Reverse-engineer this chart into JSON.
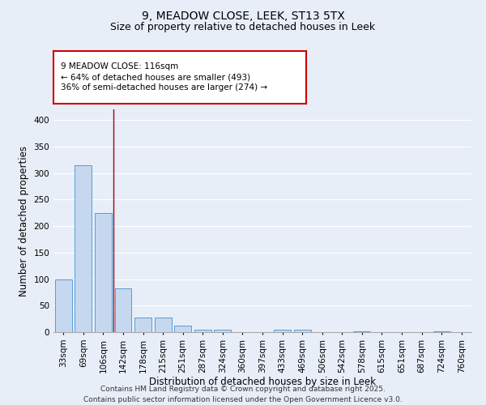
{
  "title_line1": "9, MEADOW CLOSE, LEEK, ST13 5TX",
  "title_line2": "Size of property relative to detached houses in Leek",
  "xlabel": "Distribution of detached houses by size in Leek",
  "ylabel": "Number of detached properties",
  "categories": [
    "33sqm",
    "69sqm",
    "106sqm",
    "142sqm",
    "178sqm",
    "215sqm",
    "251sqm",
    "287sqm",
    "324sqm",
    "360sqm",
    "397sqm",
    "433sqm",
    "469sqm",
    "506sqm",
    "542sqm",
    "578sqm",
    "615sqm",
    "651sqm",
    "687sqm",
    "724sqm",
    "760sqm"
  ],
  "values": [
    100,
    315,
    225,
    82,
    27,
    27,
    12,
    4,
    4,
    0,
    0,
    5,
    5,
    0,
    0,
    2,
    0,
    0,
    0,
    2,
    0
  ],
  "bar_color": "#c5d8f0",
  "bar_edge_color": "#5b9bd5",
  "background_color": "#e8eef8",
  "grid_color": "#ffffff",
  "red_line_x": 2.5,
  "annotation_text": "9 MEADOW CLOSE: 116sqm\n← 64% of detached houses are smaller (493)\n36% of semi-detached houses are larger (274) →",
  "annotation_box_color": "#ffffff",
  "annotation_box_edge": "#cc0000",
  "ylim": [
    0,
    420
  ],
  "yticks": [
    0,
    50,
    100,
    150,
    200,
    250,
    300,
    350,
    400
  ],
  "footer_line1": "Contains HM Land Registry data © Crown copyright and database right 2025.",
  "footer_line2": "Contains public sector information licensed under the Open Government Licence v3.0.",
  "title_fontsize": 10,
  "subtitle_fontsize": 9,
  "axis_label_fontsize": 8.5,
  "tick_fontsize": 7.5,
  "annotation_fontsize": 7.5,
  "footer_fontsize": 6.5
}
